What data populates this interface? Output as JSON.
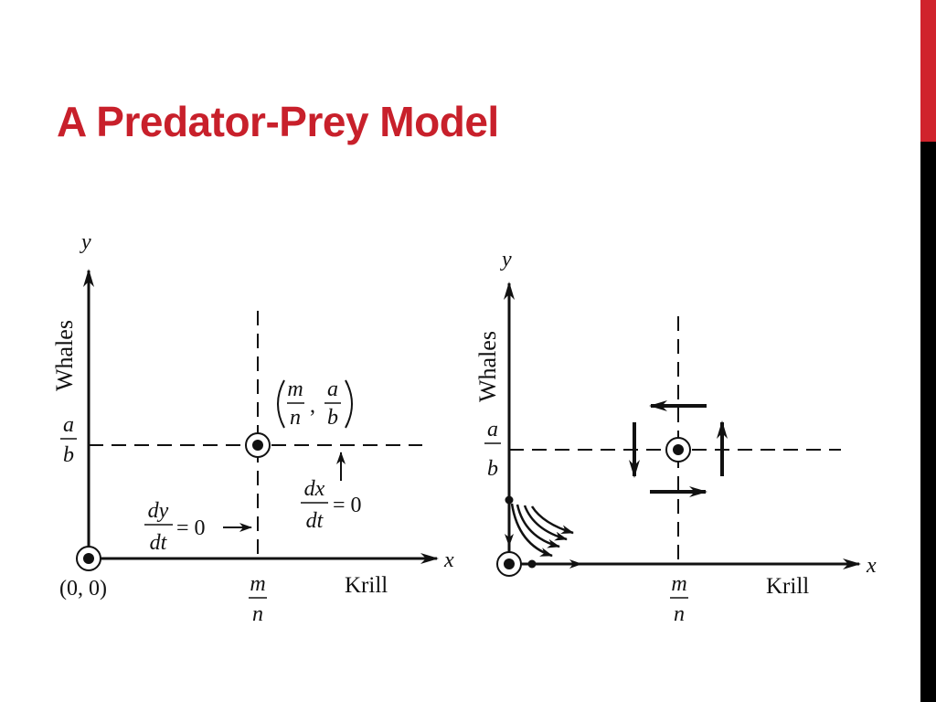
{
  "slide": {
    "title": "A Predator-Prey Model"
  },
  "left_diagram": {
    "y_axis": "y",
    "x_axis": "x",
    "y_axis_name": "Whales",
    "x_axis_name": "Krill",
    "origin_label": "(0, 0)",
    "y_tick": {
      "num": "a",
      "den": "b"
    },
    "x_tick": {
      "num": "m",
      "den": "n"
    },
    "equilibrium": {
      "m": "m",
      "n": "n",
      "a": "a",
      "b": "b"
    },
    "dy_null": {
      "num": "dy",
      "den": "dt",
      "rhs": "= 0"
    },
    "dx_null": {
      "num": "dx",
      "den": "dt",
      "rhs": "= 0"
    }
  },
  "right_diagram": {
    "y_axis": "y",
    "x_axis": "x",
    "y_axis_name": "Whales",
    "x_axis_name": "Krill",
    "y_tick": {
      "num": "a",
      "den": "b"
    },
    "x_tick": {
      "num": "m",
      "den": "n"
    }
  }
}
